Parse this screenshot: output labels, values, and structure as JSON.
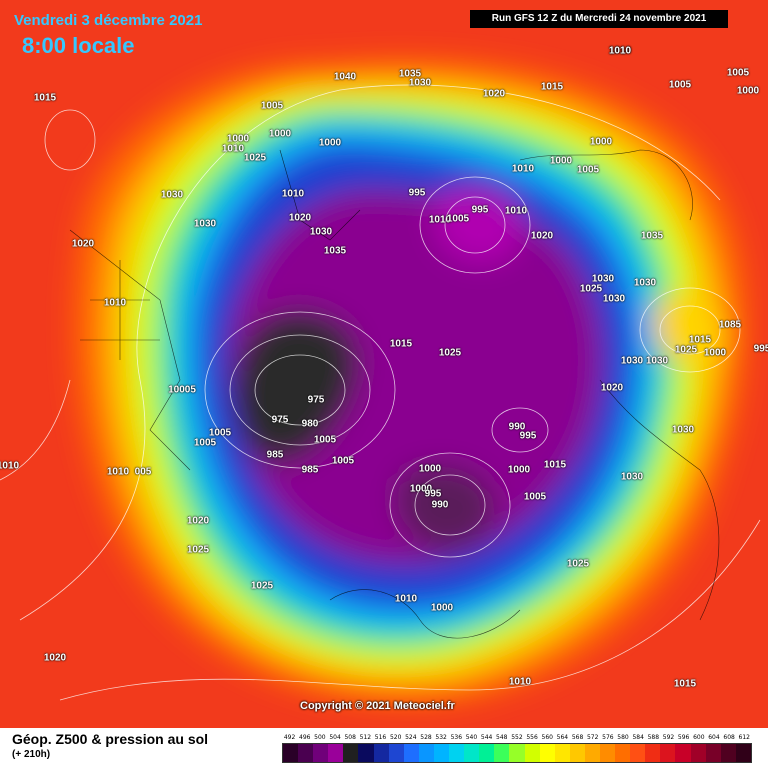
{
  "header": {
    "date": "Vendredi 3 décembre 2021",
    "time": "8:00 locale",
    "run": "Run GFS 12 Z du Mercredi 24 novembre 2021"
  },
  "copyright": "Copyright © 2021 Meteociel.fr",
  "legend": {
    "title": "Géop. Z500 & pression au sol",
    "subtitle": "(+ 210h)",
    "ticks": [
      "492",
      "496",
      "500",
      "504",
      "508",
      "512",
      "516",
      "520",
      "524",
      "528",
      "532",
      "536",
      "540",
      "544",
      "548",
      "552",
      "556",
      "560",
      "564",
      "568",
      "572",
      "576",
      "580",
      "584",
      "588",
      "592",
      "596",
      "600",
      "604",
      "608",
      "612"
    ],
    "colors": [
      "#2a0028",
      "#4a0050",
      "#70007a",
      "#9a009a",
      "#202020",
      "#0a0a5e",
      "#1428a0",
      "#1e46d2",
      "#1e6eff",
      "#0a96ff",
      "#00b4ff",
      "#00d2f0",
      "#00e6c8",
      "#00f096",
      "#3cff5a",
      "#96ff28",
      "#d2ff00",
      "#ffff00",
      "#ffe600",
      "#ffc800",
      "#ffaa00",
      "#ff8c00",
      "#ff6e00",
      "#ff5014",
      "#f02d14",
      "#dc141e",
      "#c80028",
      "#a00028",
      "#780028",
      "#500020",
      "#300018"
    ]
  },
  "pressure_labels": [
    "1015",
    "1040",
    "1035",
    "1030",
    "1020",
    "1015",
    "1010",
    "1005",
    "1005",
    "1000",
    "1000",
    "1010",
    "1025",
    "1000",
    "1005",
    "1000",
    "1030",
    "1030",
    "1010",
    "1020",
    "1030",
    "995",
    "995",
    "1010",
    "1005",
    "1010",
    "1010",
    "1000",
    "1005",
    "1000",
    "1020",
    "1035",
    "1020",
    "1035",
    "1010",
    "1030",
    "1025",
    "1030",
    "1030",
    "1015",
    "1025",
    "1085",
    "1000",
    "995",
    "1015",
    "1025",
    "1030",
    "1030",
    "1020",
    "10005",
    "1005",
    "975",
    "1005",
    "975",
    "985",
    "980",
    "1005",
    "1005",
    "985",
    "1010",
    "1010",
    "005",
    "990",
    "995",
    "1000",
    "1000",
    "995",
    "990",
    "1000",
    "1005",
    "1030",
    "1030",
    "1015",
    "1020",
    "1025",
    "1025",
    "1025",
    "1010",
    "1000",
    "1010",
    "1020",
    "1015",
    "1010"
  ],
  "icons": {
    "map": "globe-map-icon"
  }
}
